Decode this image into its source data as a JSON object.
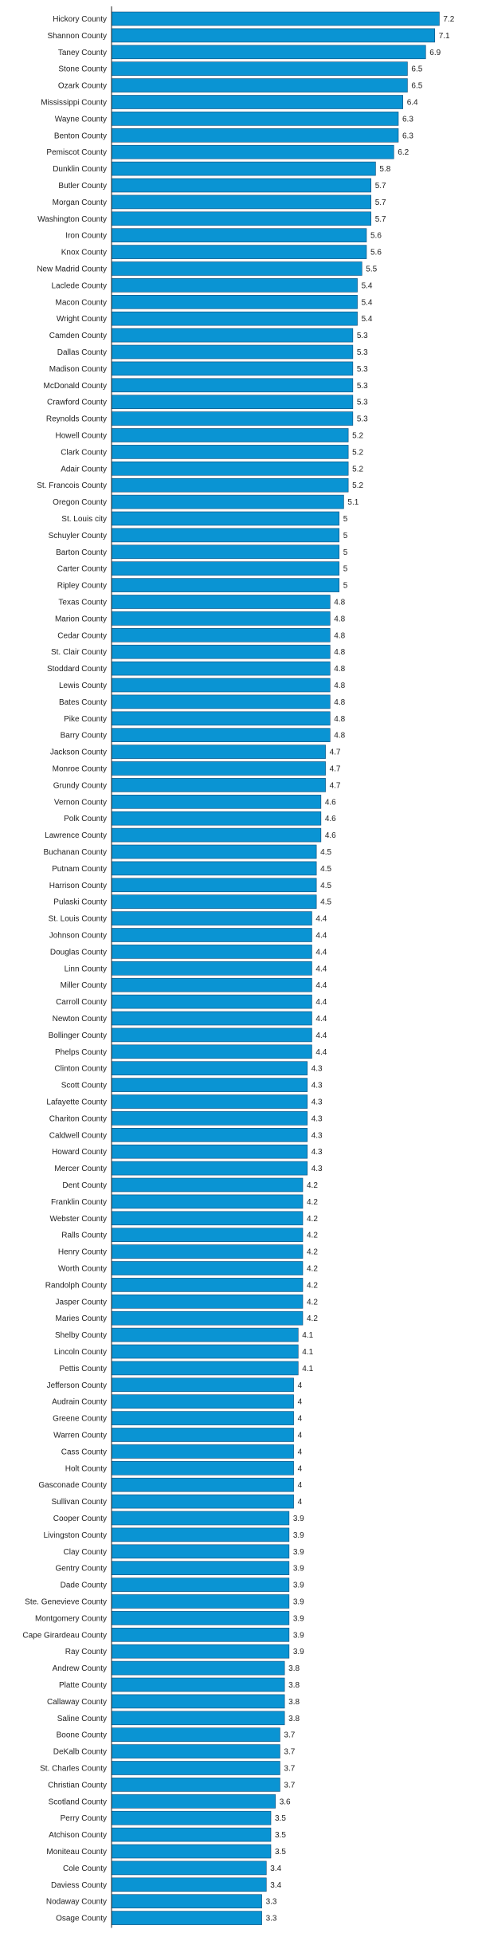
{
  "chart_data": {
    "type": "bar",
    "orientation": "horizontal",
    "title": "",
    "xlabel": "",
    "ylabel": "",
    "bar_color": "#0a94d3",
    "bar_edge_color": "#0c4a78",
    "axis_color": "#222222",
    "xlim": [
      0,
      7.7
    ],
    "grid": false,
    "legend": "none",
    "categories": [
      "Hickory County",
      "Shannon County",
      "Taney County",
      "Stone County",
      "Ozark County",
      "Mississippi County",
      "Wayne County",
      "Benton County",
      "Pemiscot County",
      "Dunklin County",
      "Butler County",
      "Morgan County",
      "Washington County",
      "Iron County",
      "Knox County",
      "New Madrid County",
      "Laclede County",
      "Macon County",
      "Wright County",
      "Camden County",
      "Dallas County",
      "Madison County",
      "McDonald County",
      "Crawford County",
      "Reynolds County",
      "Howell County",
      "Clark County",
      "Adair County",
      "St. Francois County",
      "Oregon County",
      "St. Louis city",
      "Schuyler County",
      "Barton County",
      "Carter County",
      "Ripley County",
      "Texas County",
      "Marion County",
      "Cedar County",
      "St. Clair County",
      "Stoddard County",
      "Lewis County",
      "Bates County",
      "Pike County",
      "Barry County",
      "Jackson County",
      "Monroe County",
      "Grundy County",
      "Vernon County",
      "Polk County",
      "Lawrence County",
      "Buchanan County",
      "Putnam County",
      "Harrison County",
      "Pulaski County",
      "St. Louis County",
      "Johnson County",
      "Douglas County",
      "Linn County",
      "Miller County",
      "Carroll County",
      "Newton County",
      "Bollinger County",
      "Phelps County",
      "Clinton County",
      "Scott County",
      "Lafayette County",
      "Chariton County",
      "Caldwell County",
      "Howard County",
      "Mercer County",
      "Dent County",
      "Franklin County",
      "Webster County",
      "Ralls County",
      "Henry County",
      "Worth County",
      "Randolph County",
      "Jasper County",
      "Maries County",
      "Shelby County",
      "Lincoln County",
      "Pettis County",
      "Jefferson County",
      "Audrain County",
      "Greene County",
      "Warren County",
      "Cass County",
      "Holt County",
      "Gasconade County",
      "Sullivan County",
      "Cooper County",
      "Livingston County",
      "Clay County",
      "Gentry County",
      "Dade County",
      "Ste. Genevieve County",
      "Montgomery County",
      "Cape Girardeau County",
      "Ray County",
      "Andrew County",
      "Platte County",
      "Callaway County",
      "Saline County",
      "Boone County",
      "DeKalb County",
      "St. Charles County",
      "Christian County",
      "Scotland County",
      "Perry County",
      "Atchison County",
      "Moniteau County",
      "Cole County",
      "Daviess County",
      "Nodaway County",
      "Osage County"
    ],
    "values": [
      7.2,
      7.1,
      6.9,
      6.5,
      6.5,
      6.4,
      6.3,
      6.3,
      6.2,
      5.8,
      5.7,
      5.7,
      5.7,
      5.6,
      5.6,
      5.5,
      5.4,
      5.4,
      5.4,
      5.3,
      5.3,
      5.3,
      5.3,
      5.3,
      5.3,
      5.2,
      5.2,
      5.2,
      5.2,
      5.1,
      5,
      5,
      5,
      5,
      5,
      4.8,
      4.8,
      4.8,
      4.8,
      4.8,
      4.8,
      4.8,
      4.8,
      4.8,
      4.7,
      4.7,
      4.7,
      4.6,
      4.6,
      4.6,
      4.5,
      4.5,
      4.5,
      4.5,
      4.4,
      4.4,
      4.4,
      4.4,
      4.4,
      4.4,
      4.4,
      4.4,
      4.4,
      4.3,
      4.3,
      4.3,
      4.3,
      4.3,
      4.3,
      4.3,
      4.2,
      4.2,
      4.2,
      4.2,
      4.2,
      4.2,
      4.2,
      4.2,
      4.2,
      4.1,
      4.1,
      4.1,
      4,
      4,
      4,
      4,
      4,
      4,
      4,
      4,
      3.9,
      3.9,
      3.9,
      3.9,
      3.9,
      3.9,
      3.9,
      3.9,
      3.9,
      3.8,
      3.8,
      3.8,
      3.8,
      3.7,
      3.7,
      3.7,
      3.7,
      3.6,
      3.5,
      3.5,
      3.5,
      3.4,
      3.4,
      3.3,
      3.3
    ]
  }
}
